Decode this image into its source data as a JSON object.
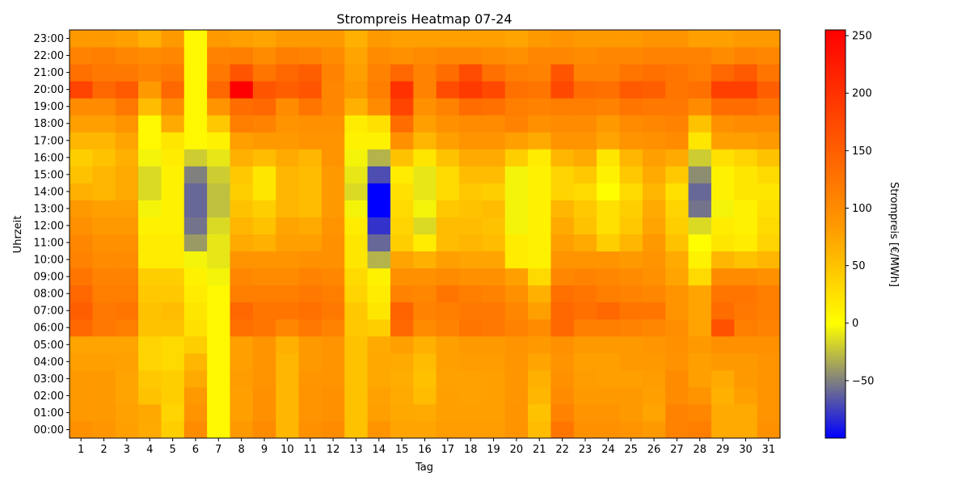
{
  "chart_data": {
    "type": "heatmap",
    "title": "Strompreis Heatmap 07-24",
    "xlabel": "Tag",
    "ylabel": "Uhrzeit",
    "colorbar_label": "Strompreis [€/MWh]",
    "colorbar_ticks": [
      -50,
      0,
      50,
      100,
      150,
      200,
      250
    ],
    "vmin": -100,
    "vmax": 255,
    "colormap": [
      {
        "at": 0.0,
        "color": "#0000ff"
      },
      {
        "at": 0.28,
        "color": "#ffff00"
      },
      {
        "at": 0.52,
        "color": "#ff9900"
      },
      {
        "at": 1.0,
        "color": "#ff0000"
      }
    ],
    "days": [
      "1",
      "2",
      "3",
      "4",
      "5",
      "6",
      "7",
      "8",
      "9",
      "10",
      "11",
      "12",
      "13",
      "14",
      "15",
      "16",
      "17",
      "18",
      "19",
      "20",
      "21",
      "22",
      "23",
      "24",
      "25",
      "26",
      "27",
      "28",
      "29",
      "30",
      "31"
    ],
    "hours": [
      "00:00",
      "01:00",
      "02:00",
      "03:00",
      "04:00",
      "05:00",
      "06:00",
      "07:00",
      "08:00",
      "09:00",
      "10:00",
      "11:00",
      "12:00",
      "13:00",
      "14:00",
      "15:00",
      "16:00",
      "17:00",
      "18:00",
      "19:00",
      "20:00",
      "21:00",
      "22:00",
      "23:00"
    ],
    "values": [
      [
        95,
        88,
        80,
        70,
        40,
        100,
        5,
        85,
        100,
        60,
        95,
        100,
        50,
        90,
        75,
        75,
        82,
        82,
        82,
        90,
        55,
        125,
        95,
        95,
        90,
        85,
        110,
        115,
        70,
        70,
        95
      ],
      [
        85,
        85,
        78,
        72,
        35,
        90,
        5,
        80,
        95,
        60,
        90,
        95,
        50,
        80,
        72,
        70,
        80,
        80,
        80,
        90,
        50,
        110,
        90,
        90,
        85,
        75,
        110,
        105,
        70,
        70,
        90
      ],
      [
        85,
        85,
        75,
        50,
        40,
        85,
        5,
        80,
        95,
        60,
        90,
        95,
        50,
        78,
        70,
        55,
        80,
        78,
        80,
        88,
        60,
        100,
        85,
        85,
        85,
        80,
        100,
        90,
        65,
        80,
        90
      ],
      [
        85,
        85,
        75,
        45,
        40,
        70,
        5,
        82,
        90,
        60,
        88,
        90,
        50,
        72,
        68,
        52,
        78,
        78,
        80,
        88,
        65,
        95,
        82,
        80,
        80,
        82,
        100,
        80,
        70,
        85,
        90
      ],
      [
        80,
        80,
        78,
        35,
        30,
        60,
        5,
        80,
        90,
        60,
        85,
        90,
        50,
        72,
        70,
        55,
        80,
        82,
        82,
        88,
        75,
        90,
        80,
        80,
        85,
        85,
        92,
        80,
        85,
        85,
        90
      ],
      [
        75,
        75,
        75,
        35,
        30,
        40,
        5,
        80,
        90,
        65,
        85,
        90,
        50,
        70,
        80,
        65,
        80,
        85,
        85,
        90,
        85,
        95,
        85,
        85,
        85,
        88,
        95,
        85,
        95,
        95,
        95
      ],
      [
        140,
        120,
        115,
        50,
        50,
        25,
        5,
        130,
        125,
        105,
        120,
        110,
        45,
        40,
        140,
        100,
        110,
        125,
        120,
        110,
        100,
        140,
        115,
        115,
        110,
        105,
        98,
        75,
        165,
        115,
        110
      ],
      [
        150,
        120,
        125,
        50,
        55,
        20,
        5,
        140,
        125,
        125,
        130,
        120,
        45,
        20,
        145,
        110,
        115,
        120,
        120,
        105,
        80,
        140,
        130,
        140,
        125,
        125,
        90,
        75,
        135,
        120,
        115
      ],
      [
        140,
        115,
        115,
        45,
        45,
        15,
        5,
        115,
        115,
        115,
        120,
        115,
        35,
        15,
        110,
        105,
        125,
        115,
        110,
        95,
        65,
        130,
        125,
        115,
        110,
        105,
        90,
        75,
        125,
        125,
        115
      ],
      [
        125,
        110,
        110,
        40,
        40,
        10,
        -5,
        105,
        100,
        100,
        110,
        105,
        30,
        10,
        95,
        95,
        100,
        95,
        95,
        80,
        30,
        105,
        110,
        105,
        100,
        95,
        75,
        30,
        100,
        100,
        95
      ],
      [
        110,
        100,
        100,
        15,
        15,
        -5,
        -10,
        90,
        90,
        90,
        95,
        95,
        20,
        -30,
        75,
        65,
        80,
        75,
        75,
        15,
        10,
        90,
        90,
        90,
        85,
        90,
        70,
        10,
        60,
        50,
        60
      ],
      [
        105,
        95,
        95,
        15,
        15,
        -40,
        -10,
        70,
        65,
        80,
        80,
        95,
        20,
        -60,
        40,
        15,
        55,
        60,
        55,
        15,
        10,
        80,
        70,
        40,
        60,
        85,
        50,
        0,
        20,
        15,
        35
      ],
      [
        95,
        85,
        85,
        10,
        10,
        -55,
        -15,
        60,
        50,
        75,
        70,
        90,
        15,
        -80,
        35,
        -15,
        55,
        55,
        50,
        -5,
        10,
        70,
        50,
        25,
        45,
        75,
        40,
        -15,
        15,
        10,
        30
      ],
      [
        85,
        80,
        80,
        -5,
        10,
        -60,
        -25,
        50,
        40,
        60,
        55,
        85,
        -5,
        -100,
        30,
        -5,
        45,
        50,
        55,
        -5,
        10,
        60,
        45,
        25,
        40,
        70,
        35,
        -55,
        -5,
        10,
        25
      ],
      [
        65,
        60,
        70,
        -15,
        10,
        -60,
        -25,
        40,
        20,
        60,
        55,
        85,
        -15,
        -100,
        25,
        -10,
        30,
        45,
        40,
        -5,
        10,
        35,
        30,
        0,
        30,
        60,
        25,
        -60,
        10,
        20,
        20
      ],
      [
        50,
        60,
        70,
        -15,
        10,
        -50,
        -20,
        45,
        20,
        60,
        55,
        85,
        -10,
        -70,
        15,
        -10,
        30,
        55,
        55,
        -5,
        10,
        35,
        45,
        10,
        45,
        70,
        45,
        -45,
        10,
        20,
        30
      ],
      [
        40,
        50,
        65,
        -5,
        15,
        -20,
        -10,
        65,
        55,
        70,
        60,
        90,
        -5,
        -30,
        50,
        20,
        50,
        70,
        70,
        40,
        15,
        60,
        70,
        20,
        60,
        80,
        70,
        -20,
        25,
        35,
        50
      ],
      [
        60,
        60,
        75,
        5,
        20,
        5,
        10,
        80,
        85,
        85,
        90,
        90,
        10,
        10,
        95,
        60,
        80,
        90,
        90,
        80,
        70,
        90,
        90,
        75,
        90,
        95,
        100,
        20,
        80,
        80,
        85
      ],
      [
        80,
        80,
        90,
        5,
        70,
        5,
        45,
        115,
        110,
        90,
        95,
        95,
        15,
        25,
        135,
        80,
        95,
        100,
        100,
        110,
        95,
        100,
        100,
        85,
        100,
        105,
        110,
        50,
        95,
        100,
        100
      ],
      [
        100,
        100,
        120,
        55,
        100,
        5,
        90,
        135,
        140,
        100,
        125,
        105,
        65,
        100,
        180,
        95,
        110,
        135,
        130,
        115,
        110,
        115,
        115,
        110,
        125,
        120,
        120,
        100,
        135,
        135,
        125
      ],
      [
        180,
        140,
        155,
        85,
        140,
        5,
        140,
        255,
        160,
        150,
        160,
        105,
        85,
        115,
        200,
        110,
        170,
        190,
        175,
        130,
        125,
        175,
        135,
        130,
        155,
        150,
        125,
        130,
        185,
        185,
        150
      ],
      [
        130,
        120,
        120,
        110,
        120,
        5,
        120,
        160,
        125,
        140,
        150,
        110,
        80,
        110,
        140,
        110,
        135,
        170,
        130,
        115,
        110,
        160,
        110,
        110,
        125,
        130,
        125,
        115,
        140,
        155,
        125
      ],
      [
        110,
        115,
        105,
        100,
        105,
        5,
        110,
        115,
        100,
        115,
        110,
        100,
        75,
        100,
        95,
        100,
        105,
        105,
        100,
        95,
        105,
        105,
        100,
        105,
        105,
        110,
        110,
        110,
        100,
        110,
        105
      ],
      [
        85,
        85,
        80,
        65,
        85,
        5,
        85,
        80,
        75,
        85,
        85,
        85,
        65,
        85,
        80,
        80,
        80,
        80,
        80,
        75,
        85,
        90,
        85,
        85,
        85,
        90,
        90,
        80,
        80,
        85,
        85
      ]
    ]
  }
}
